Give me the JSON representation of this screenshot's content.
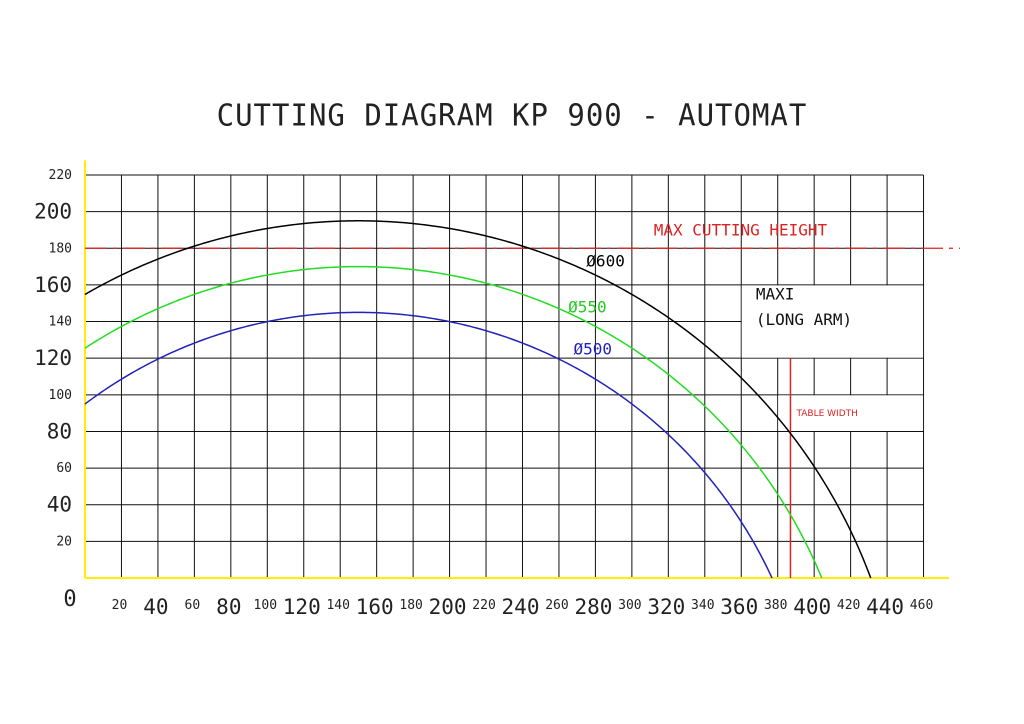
{
  "chart_data": {
    "type": "line",
    "title": "CUTTING DIAGRAM KP 900 - AUTOMAT",
    "xlim": [
      0,
      470
    ],
    "ylim": [
      0,
      220
    ],
    "x_ticks": [
      {
        "value": 0,
        "label": "0",
        "big": true
      },
      {
        "value": 20,
        "label": "20",
        "big": false
      },
      {
        "value": 40,
        "label": "40",
        "big": true
      },
      {
        "value": 60,
        "label": "60",
        "big": false
      },
      {
        "value": 80,
        "label": "80",
        "big": true
      },
      {
        "value": 100,
        "label": "100",
        "big": false
      },
      {
        "value": 120,
        "label": "120",
        "big": true
      },
      {
        "value": 140,
        "label": "140",
        "big": false
      },
      {
        "value": 160,
        "label": "160",
        "big": true
      },
      {
        "value": 180,
        "label": "180",
        "big": false
      },
      {
        "value": 200,
        "label": "200",
        "big": true
      },
      {
        "value": 220,
        "label": "220",
        "big": false
      },
      {
        "value": 240,
        "label": "240",
        "big": true
      },
      {
        "value": 260,
        "label": "260",
        "big": false
      },
      {
        "value": 280,
        "label": "280",
        "big": true
      },
      {
        "value": 300,
        "label": "300",
        "big": false
      },
      {
        "value": 320,
        "label": "320",
        "big": true
      },
      {
        "value": 340,
        "label": "340",
        "big": false
      },
      {
        "value": 360,
        "label": "360",
        "big": true
      },
      {
        "value": 380,
        "label": "380",
        "big": false
      },
      {
        "value": 400,
        "label": "400",
        "big": true
      },
      {
        "value": 420,
        "label": "420",
        "big": false
      },
      {
        "value": 440,
        "label": "440",
        "big": true
      },
      {
        "value": 460,
        "label": "460",
        "big": false
      }
    ],
    "y_ticks": [
      {
        "value": 20,
        "label": "20",
        "big": false
      },
      {
        "value": 40,
        "label": "40",
        "big": true
      },
      {
        "value": 60,
        "label": "60",
        "big": false
      },
      {
        "value": 80,
        "label": "80",
        "big": true
      },
      {
        "value": 100,
        "label": "100",
        "big": false
      },
      {
        "value": 120,
        "label": "120",
        "big": true
      },
      {
        "value": 140,
        "label": "140",
        "big": false
      },
      {
        "value": 160,
        "label": "160",
        "big": true
      },
      {
        "value": 180,
        "label": "180",
        "big": false
      },
      {
        "value": 200,
        "label": "200",
        "big": true
      },
      {
        "value": 220,
        "label": "220",
        "big": false
      }
    ],
    "grid": true,
    "series": [
      {
        "name": "Ø600",
        "color": "#000000",
        "center_x": 150,
        "center_y": -105,
        "radius": 300,
        "x": [
          0,
          20,
          40,
          60,
          80,
          100,
          120,
          150,
          180,
          200,
          220,
          240,
          260,
          280,
          300,
          320,
          340,
          360,
          380,
          400,
          420,
          430
        ],
        "y": [
          155.0,
          166.2,
          175.5,
          183.0,
          188.7,
          192.6,
          195.0,
          195.0,
          195.0,
          192.6,
          188.7,
          183.0,
          175.5,
          166.2,
          154.8,
          141.0,
          124.4,
          104.4,
          79.2,
          44.7,
          0,
          0
        ]
      },
      {
        "name": "Ø550",
        "color": "#22dd22",
        "center_x": 150,
        "center_y": -105,
        "radius": 275,
        "x": [
          0,
          20,
          40,
          60,
          80,
          100,
          120,
          150,
          180,
          200,
          220,
          240,
          260,
          280,
          300,
          320,
          340,
          360,
          380,
          400
        ],
        "y": [
          126.0,
          137.6,
          147.6,
          155.6,
          162.0,
          166.4,
          169.1,
          170.0,
          169.1,
          166.4,
          162.0,
          155.6,
          147.6,
          137.6,
          124.2,
          108.4,
          88.7,
          63.6,
          28.6,
          0
        ]
      },
      {
        "name": "Ø500",
        "color": "#2222bb",
        "center_x": 150,
        "center_y": -105,
        "radius": 250,
        "x": [
          0,
          20,
          40,
          60,
          80,
          100,
          120,
          150,
          180,
          200,
          220,
          240,
          260,
          280,
          300,
          320,
          340,
          360,
          378
        ],
        "y": [
          95.0,
          108.4,
          119.5,
          128.4,
          135.3,
          140.0,
          143.0,
          145.0,
          143.0,
          140.0,
          135.3,
          128.4,
          119.5,
          108.4,
          95.0,
          76.9,
          53.2,
          18.8,
          0
        ]
      }
    ],
    "reference_lines": [
      {
        "label": "MAX CUTTING HEIGHT",
        "orientation": "horizontal",
        "value": 180,
        "color": "#dd2222"
      },
      {
        "label": "TABLE WIDTH",
        "orientation": "vertical",
        "value": 387,
        "color": "#dd2222"
      }
    ],
    "annotations": [
      {
        "text": "Ø600",
        "x": 275,
        "y": 170,
        "color": "#000000"
      },
      {
        "text": "Ø550",
        "x": 265,
        "y": 145,
        "color": "#22cc22"
      },
      {
        "text": "Ø500",
        "x": 268,
        "y": 122,
        "color": "#2222bb"
      },
      {
        "text": "MAXI",
        "x": 368,
        "y": 152,
        "color": "#111111"
      },
      {
        "text": "(LONG ARM)",
        "x": 368,
        "y": 138,
        "color": "#111111"
      }
    ],
    "axis_color": "#ffee00",
    "grid_color": "#111111"
  }
}
